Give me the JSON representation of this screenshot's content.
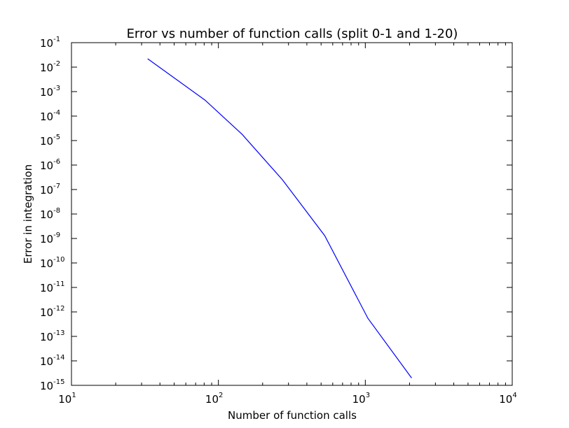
{
  "chart_data": {
    "type": "line",
    "title": "Error vs number of function calls (split 0-1 and 1-20)",
    "xlabel": "Number of function calls",
    "ylabel": "Error in integration",
    "xscale": "log",
    "yscale": "log",
    "xlim": [
      10,
      10000
    ],
    "ylim": [
      1e-15,
      0.1
    ],
    "grid": false,
    "x_ticks": [
      {
        "base": "10",
        "exp": "1"
      },
      {
        "base": "10",
        "exp": "2"
      },
      {
        "base": "10",
        "exp": "3"
      },
      {
        "base": "10",
        "exp": "4"
      }
    ],
    "y_ticks": [
      {
        "base": "10",
        "exp": "-1"
      },
      {
        "base": "10",
        "exp": "-2"
      },
      {
        "base": "10",
        "exp": "-3"
      },
      {
        "base": "10",
        "exp": "-4"
      },
      {
        "base": "10",
        "exp": "-5"
      },
      {
        "base": "10",
        "exp": "-6"
      },
      {
        "base": "10",
        "exp": "-7"
      },
      {
        "base": "10",
        "exp": "-8"
      },
      {
        "base": "10",
        "exp": "-9"
      },
      {
        "base": "10",
        "exp": "-10"
      },
      {
        "base": "10",
        "exp": "-11"
      },
      {
        "base": "10",
        "exp": "-12"
      },
      {
        "base": "10",
        "exp": "-13"
      },
      {
        "base": "10",
        "exp": "-14"
      },
      {
        "base": "10",
        "exp": "-15"
      }
    ],
    "series": [
      {
        "color": "#0000ff",
        "x": [
          33,
          81,
          145,
          273,
          529,
          1041,
          2065
        ],
        "y": [
          0.022,
          0.00045,
          1.8e-05,
          2.5e-07,
          1.3e-09,
          5.5e-13,
          2e-15
        ]
      }
    ]
  }
}
